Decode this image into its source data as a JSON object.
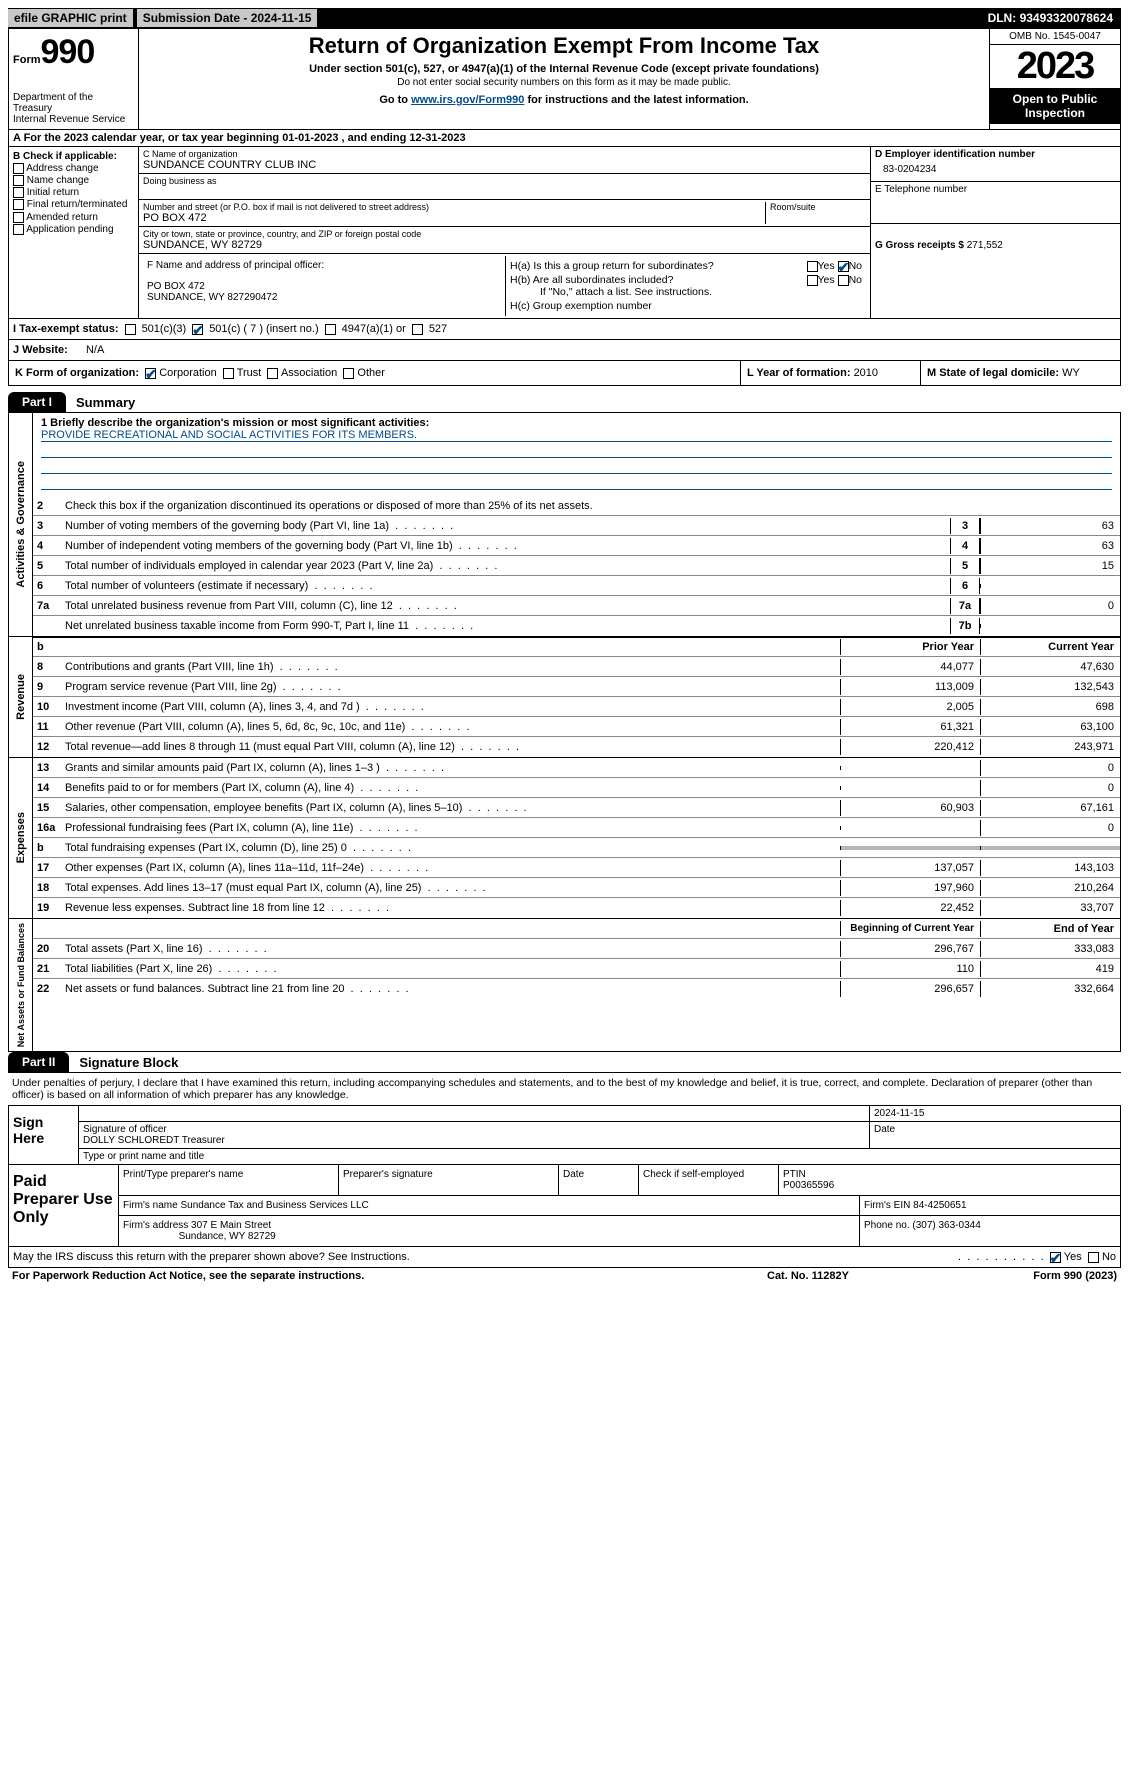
{
  "topbar": {
    "efile": "efile GRAPHIC print",
    "subdate_label": "Submission Date - ",
    "subdate": "2024-11-15",
    "dln_label": "DLN: ",
    "dln": "93493320078624"
  },
  "header": {
    "form_word": "Form",
    "form_num": "990",
    "dept": "Department of the Treasury",
    "irs": "Internal Revenue Service",
    "title": "Return of Organization Exempt From Income Tax",
    "sub1": "Under section 501(c), 527, or 4947(a)(1) of the Internal Revenue Code (except private foundations)",
    "sub2": "Do not enter social security numbers on this form as it may be made public.",
    "goto_pre": "Go to ",
    "goto_link": "www.irs.gov/Form990",
    "goto_post": " for instructions and the latest information.",
    "omb": "OMB No. 1545-0047",
    "year": "2023",
    "open": "Open to Public Inspection"
  },
  "section_a": {
    "text": "A For the 2023 calendar year, or tax year beginning 01-01-2023   , and ending 12-31-2023"
  },
  "col_b": {
    "hdr": "B Check if applicable:",
    "items": [
      "Address change",
      "Name change",
      "Initial return",
      "Final return/terminated",
      "Amended return",
      "Application pending"
    ]
  },
  "col_c": {
    "name_lbl": "C Name of organization",
    "name": "SUNDANCE COUNTRY CLUB INC",
    "dba_lbl": "Doing business as",
    "dba": "",
    "addr_lbl": "Number and street (or P.O. box if mail is not delivered to street address)",
    "room_lbl": "Room/suite",
    "addr": "PO BOX 472",
    "city_lbl": "City or town, state or province, country, and ZIP or foreign postal code",
    "city": "SUNDANCE, WY  82729",
    "officer_lbl": "F Name and address of principal officer:",
    "officer_addr1": "PO BOX 472",
    "officer_addr2": "SUNDANCE, WY  827290472"
  },
  "col_d": {
    "ein_lbl": "D Employer identification number",
    "ein": "83-0204234",
    "phone_lbl": "E Telephone number",
    "phone": "",
    "gross_lbl": "G Gross receipts $ ",
    "gross": "271,552"
  },
  "col_h": {
    "ha_lbl": "H(a)  Is this a group return for subordinates?",
    "hb_lbl": "H(b)  Are all subordinates included?",
    "hb_note": "If \"No,\" attach a list. See instructions.",
    "hc_lbl": "H(c)  Group exemption number ",
    "yes": "Yes",
    "no": "No"
  },
  "row_i": {
    "lbl": "I  Tax-exempt status:",
    "c3": "501(c)(3)",
    "c_other": "501(c) ( 7 ) (insert no.)",
    "c4947": "4947(a)(1) or",
    "c527": "527"
  },
  "row_j": {
    "lbl": "J  Website:",
    "val": "N/A"
  },
  "row_k": {
    "lbl": "K Form of organization:",
    "corp": "Corporation",
    "trust": "Trust",
    "assoc": "Association",
    "other": "Other",
    "l_lbl": "L Year of formation: ",
    "l_val": "2010",
    "m_lbl": "M State of legal domicile: ",
    "m_val": "WY"
  },
  "part1": {
    "tab": "Part I",
    "title": "Summary",
    "mission_lbl": "1   Briefly describe the organization's mission or most significant activities:",
    "mission": "PROVIDE RECREATIONAL AND SOCIAL ACTIVITIES FOR ITS MEMBERS.",
    "line2": "Check this box      if the organization discontinued its operations or disposed of more than 25% of its net assets.",
    "governance_label": "Activities & Governance",
    "revenue_label": "Revenue",
    "expenses_label": "Expenses",
    "netassets_label": "Net Assets or Fund Balances",
    "lines_gov": [
      {
        "n": "3",
        "t": "Number of voting members of the governing body (Part VI, line 1a)",
        "box": "3",
        "v": "63"
      },
      {
        "n": "4",
        "t": "Number of independent voting members of the governing body (Part VI, line 1b)",
        "box": "4",
        "v": "63"
      },
      {
        "n": "5",
        "t": "Total number of individuals employed in calendar year 2023 (Part V, line 2a)",
        "box": "5",
        "v": "15"
      },
      {
        "n": "6",
        "t": "Total number of volunteers (estimate if necessary)",
        "box": "6",
        "v": ""
      },
      {
        "n": "7a",
        "t": "Total unrelated business revenue from Part VIII, column (C), line 12",
        "box": "7a",
        "v": "0"
      },
      {
        "n": "",
        "t": "Net unrelated business taxable income from Form 990-T, Part I, line 11",
        "box": "7b",
        "v": ""
      }
    ],
    "col_prior": "Prior Year",
    "col_current": "Current Year",
    "col_begin": "Beginning of Current Year",
    "col_end": "End of Year",
    "lines_rev": [
      {
        "n": "8",
        "t": "Contributions and grants (Part VIII, line 1h)",
        "p": "44,077",
        "c": "47,630"
      },
      {
        "n": "9",
        "t": "Program service revenue (Part VIII, line 2g)",
        "p": "113,009",
        "c": "132,543"
      },
      {
        "n": "10",
        "t": "Investment income (Part VIII, column (A), lines 3, 4, and 7d )",
        "p": "2,005",
        "c": "698"
      },
      {
        "n": "11",
        "t": "Other revenue (Part VIII, column (A), lines 5, 6d, 8c, 9c, 10c, and 11e)",
        "p": "61,321",
        "c": "63,100"
      },
      {
        "n": "12",
        "t": "Total revenue—add lines 8 through 11 (must equal Part VIII, column (A), line 12)",
        "p": "220,412",
        "c": "243,971"
      }
    ],
    "lines_exp": [
      {
        "n": "13",
        "t": "Grants and similar amounts paid (Part IX, column (A), lines 1–3 )",
        "p": "",
        "c": "0"
      },
      {
        "n": "14",
        "t": "Benefits paid to or for members (Part IX, column (A), line 4)",
        "p": "",
        "c": "0"
      },
      {
        "n": "15",
        "t": "Salaries, other compensation, employee benefits (Part IX, column (A), lines 5–10)",
        "p": "60,903",
        "c": "67,161"
      },
      {
        "n": "16a",
        "t": "Professional fundraising fees (Part IX, column (A), line 11e)",
        "p": "",
        "c": "0"
      },
      {
        "n": "b",
        "t": "Total fundraising expenses (Part IX, column (D), line 25) 0",
        "p": "SHADE",
        "c": "SHADE"
      },
      {
        "n": "17",
        "t": "Other expenses (Part IX, column (A), lines 11a–11d, 11f–24e)",
        "p": "137,057",
        "c": "143,103"
      },
      {
        "n": "18",
        "t": "Total expenses. Add lines 13–17 (must equal Part IX, column (A), line 25)",
        "p": "197,960",
        "c": "210,264"
      },
      {
        "n": "19",
        "t": "Revenue less expenses. Subtract line 18 from line 12",
        "p": "22,452",
        "c": "33,707"
      }
    ],
    "lines_net": [
      {
        "n": "20",
        "t": "Total assets (Part X, line 16)",
        "p": "296,767",
        "c": "333,083"
      },
      {
        "n": "21",
        "t": "Total liabilities (Part X, line 26)",
        "p": "110",
        "c": "419"
      },
      {
        "n": "22",
        "t": "Net assets or fund balances. Subtract line 21 from line 20",
        "p": "296,657",
        "c": "332,664"
      }
    ]
  },
  "part2": {
    "tab": "Part II",
    "title": "Signature Block",
    "intro": "Under penalties of perjury, I declare that I have examined this return, including accompanying schedules and statements, and to the best of my knowledge and belief, it is true, correct, and complete. Declaration of preparer (other than officer) is based on all information of which preparer has any knowledge.",
    "sign_here": "Sign Here",
    "sig_date": "2024-11-15",
    "sig_lbl": "Signature of officer",
    "sig_name": "DOLLY SCHLOREDT  Treasurer",
    "sig_type_lbl": "Type or print name and title",
    "date_lbl": "Date",
    "paid": "Paid Preparer Use Only",
    "prep_name_lbl": "Print/Type preparer's name",
    "prep_sig_lbl": "Preparer's signature",
    "prep_date_lbl": "Date",
    "self_emp": "Check        if self-employed",
    "ptin_lbl": "PTIN",
    "ptin": "P00365596",
    "firm_name_lbl": "Firm's name   ",
    "firm_name": "Sundance Tax and Business Services LLC",
    "firm_ein_lbl": "Firm's EIN  ",
    "firm_ein": "84-4250651",
    "firm_addr_lbl": "Firm's address ",
    "firm_addr1": "307 E Main Street",
    "firm_addr2": "Sundance, WY  82729",
    "phone_lbl": "Phone no. ",
    "phone": "(307) 363-0344",
    "discuss": "May the IRS discuss this return with the preparer shown above? See Instructions.",
    "yes": "Yes",
    "no": "No"
  },
  "footer": {
    "left": "For Paperwork Reduction Act Notice, see the separate instructions.",
    "mid": "Cat. No. 11282Y",
    "right": "Form 990 (2023)"
  }
}
